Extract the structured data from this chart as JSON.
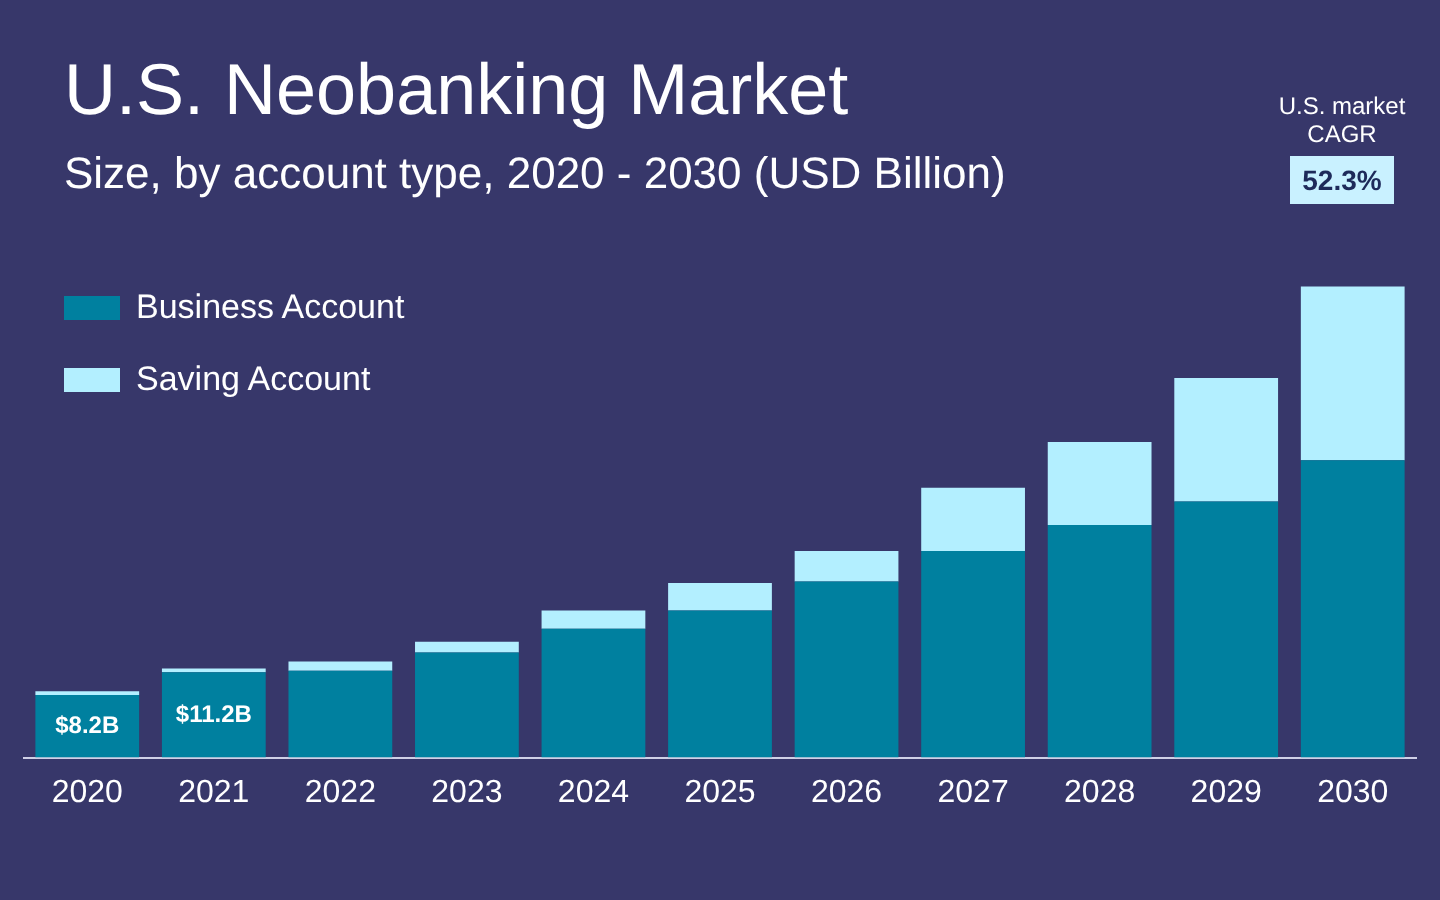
{
  "chart_data": {
    "type": "bar",
    "title": "U.S. Neobanking Market",
    "subtitle": "Size, by account type, 2020 - 2030 (USD Billion)",
    "categories": [
      "2020",
      "2021",
      "2022",
      "2023",
      "2024",
      "2025",
      "2026",
      "2027",
      "2028",
      "2029",
      "2030"
    ],
    "stacked": true,
    "legend": "top left",
    "grid": false,
    "tick_labels": "x",
    "series": [
      {
        "name": "Business Account",
        "color": "#00809f",
        "values": [
          8.2,
          11.2,
          11.4,
          13.8,
          16.9,
          19.3,
          23.1,
          27.1,
          30.5,
          33.6,
          39.0
        ],
        "value_labels": [
          "$8.2B",
          "$11.2B",
          null,
          null,
          null,
          null,
          null,
          null,
          null,
          null,
          null
        ]
      },
      {
        "name": "Saving Account",
        "color": "#b3efff",
        "values": [
          0.5,
          0.5,
          1.2,
          1.4,
          2.4,
          3.6,
          4.0,
          8.3,
          10.9,
          16.2,
          22.8
        ]
      }
    ],
    "annotations": [
      "U.S. market CAGR",
      "52.3%"
    ]
  }
}
